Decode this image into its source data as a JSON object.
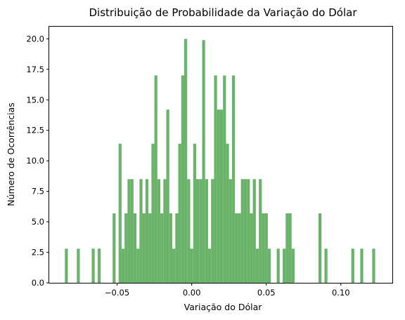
{
  "chart_data": {
    "type": "bar",
    "title": "Distribuição de Probabilidade da Variação do Dólar",
    "xlabel": "Variação do Dólar",
    "ylabel": "Número de Ocorrências",
    "xlim": [
      -0.0955,
      0.1345
    ],
    "ylim": [
      0,
      21
    ],
    "bin_width": 0.002,
    "xticks": [
      -0.05,
      0.0,
      0.05,
      0.1
    ],
    "xtick_labels": [
      "−0.05",
      "0.00",
      "0.05",
      "0.10"
    ],
    "yticks": [
      0.0,
      2.5,
      5.0,
      7.5,
      10.0,
      12.5,
      15.0,
      17.5,
      20.0
    ],
    "ytick_labels": [
      "0.0",
      "2.5",
      "5.0",
      "7.5",
      "10.0",
      "12.5",
      "15.0",
      "17.5",
      "20.0"
    ],
    "bar_color": "#6ab36a",
    "grid": false,
    "bins": [
      {
        "x": -0.084,
        "y": 2.8
      },
      {
        "x": -0.076,
        "y": 2.8
      },
      {
        "x": -0.066,
        "y": 2.8
      },
      {
        "x": -0.062,
        "y": 2.8
      },
      {
        "x": -0.052,
        "y": 5.7
      },
      {
        "x": -0.048,
        "y": 11.4
      },
      {
        "x": -0.046,
        "y": 2.8
      },
      {
        "x": -0.044,
        "y": 5.7
      },
      {
        "x": -0.042,
        "y": 8.5
      },
      {
        "x": -0.04,
        "y": 8.5
      },
      {
        "x": -0.038,
        "y": 5.7
      },
      {
        "x": -0.036,
        "y": 2.8
      },
      {
        "x": -0.034,
        "y": 8.5
      },
      {
        "x": -0.032,
        "y": 5.7
      },
      {
        "x": -0.03,
        "y": 8.5
      },
      {
        "x": -0.028,
        "y": 5.7
      },
      {
        "x": -0.026,
        "y": 11.4
      },
      {
        "x": -0.024,
        "y": 17.0
      },
      {
        "x": -0.022,
        "y": 8.5
      },
      {
        "x": -0.02,
        "y": 5.7
      },
      {
        "x": -0.018,
        "y": 8.5
      },
      {
        "x": -0.016,
        "y": 14.2
      },
      {
        "x": -0.014,
        "y": 5.7
      },
      {
        "x": -0.012,
        "y": 2.8
      },
      {
        "x": -0.01,
        "y": 5.7
      },
      {
        "x": -0.008,
        "y": 11.4
      },
      {
        "x": -0.006,
        "y": 17.0
      },
      {
        "x": -0.004,
        "y": 20.0
      },
      {
        "x": -0.002,
        "y": 8.5
      },
      {
        "x": 0.0,
        "y": 2.8
      },
      {
        "x": 0.002,
        "y": 11.4
      },
      {
        "x": 0.004,
        "y": 8.5
      },
      {
        "x": 0.006,
        "y": 8.5
      },
      {
        "x": 0.008,
        "y": 19.9
      },
      {
        "x": 0.01,
        "y": 8.5
      },
      {
        "x": 0.012,
        "y": 2.8
      },
      {
        "x": 0.014,
        "y": 8.5
      },
      {
        "x": 0.016,
        "y": 17.0
      },
      {
        "x": 0.018,
        "y": 14.2
      },
      {
        "x": 0.02,
        "y": 14.2
      },
      {
        "x": 0.022,
        "y": 17.0
      },
      {
        "x": 0.024,
        "y": 11.4
      },
      {
        "x": 0.026,
        "y": 8.5
      },
      {
        "x": 0.028,
        "y": 17.0
      },
      {
        "x": 0.03,
        "y": 5.7
      },
      {
        "x": 0.032,
        "y": 5.7
      },
      {
        "x": 0.034,
        "y": 8.5
      },
      {
        "x": 0.036,
        "y": 8.5
      },
      {
        "x": 0.038,
        "y": 8.5
      },
      {
        "x": 0.04,
        "y": 5.7
      },
      {
        "x": 0.042,
        "y": 8.5
      },
      {
        "x": 0.044,
        "y": 2.8
      },
      {
        "x": 0.046,
        "y": 8.5
      },
      {
        "x": 0.048,
        "y": 5.7
      },
      {
        "x": 0.05,
        "y": 5.7
      },
      {
        "x": 0.052,
        "y": 2.8
      },
      {
        "x": 0.058,
        "y": 2.8
      },
      {
        "x": 0.062,
        "y": 2.8
      },
      {
        "x": 0.064,
        "y": 5.7
      },
      {
        "x": 0.066,
        "y": 5.7
      },
      {
        "x": 0.068,
        "y": 2.8
      },
      {
        "x": 0.086,
        "y": 5.7
      },
      {
        "x": 0.09,
        "y": 2.8
      },
      {
        "x": 0.108,
        "y": 2.8
      },
      {
        "x": 0.114,
        "y": 2.8
      },
      {
        "x": 0.122,
        "y": 2.8
      }
    ]
  }
}
